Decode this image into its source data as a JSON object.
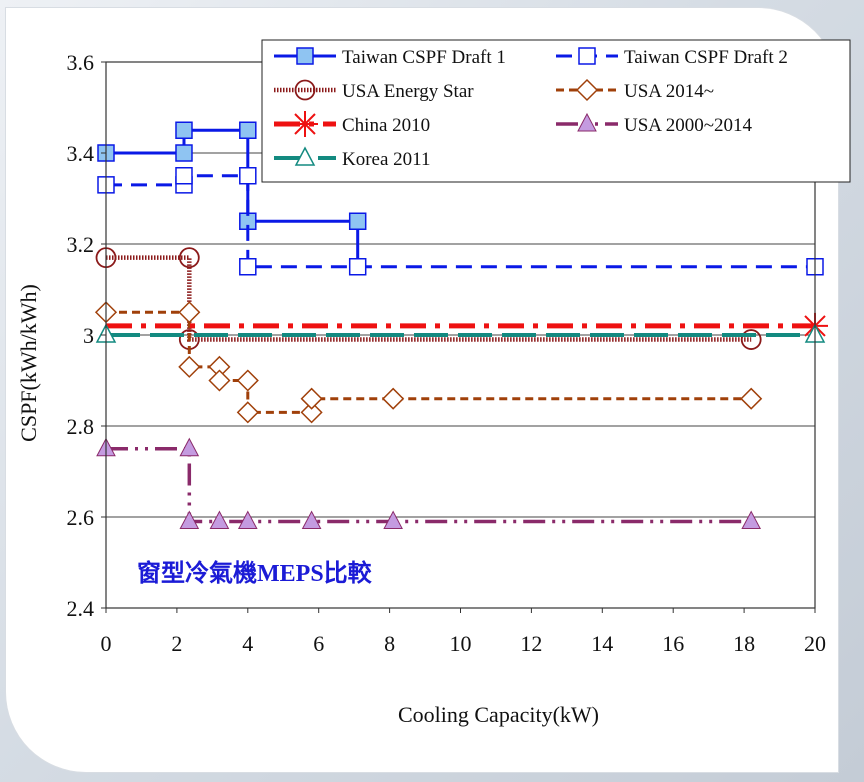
{
  "chart_data": {
    "type": "line",
    "xlabel": "Cooling Capacity(kW)",
    "ylabel": "CSPF(kWh/kWh)",
    "xlim": [
      0,
      20
    ],
    "ylim": [
      2.4,
      3.6
    ],
    "x_ticks": [
      "0",
      "2",
      "4",
      "6",
      "8",
      "10",
      "12",
      "14",
      "16",
      "18",
      "20"
    ],
    "y_ticks": [
      "2.4",
      "2.6",
      "2.8",
      "3",
      "3.2",
      "3.4",
      "3.6"
    ],
    "grid": "horizontal",
    "legend_position": "top-right",
    "annotation": "窗型冷氣機MEPS比較",
    "series": [
      {
        "name": "Taiwan CSPF Draft 1",
        "color": "#0a19e6",
        "dash": "solid",
        "marker": "square-filled",
        "marker_color": "#8fc4f2",
        "points": [
          [
            0,
            3.4
          ],
          [
            2.2,
            3.4
          ],
          [
            2.2,
            3.45
          ],
          [
            3.15,
            3.45
          ],
          [
            3.15,
            3.45
          ],
          [
            4,
            3.45
          ],
          [
            4,
            3.25
          ],
          [
            7.1,
            3.25
          ],
          [
            7.1,
            3.15
          ]
        ],
        "markers": [
          [
            0,
            3.4
          ],
          [
            2.2,
            3.4
          ],
          [
            2.2,
            3.45
          ],
          [
            4,
            3.45
          ],
          [
            4,
            3.25
          ],
          [
            7.1,
            3.25
          ]
        ]
      },
      {
        "name": "Taiwan CSPF Draft 2",
        "color": "#0a19e6",
        "dash": "dash",
        "marker": "square-open",
        "marker_color": "#0a19e6",
        "points": [
          [
            0,
            3.33
          ],
          [
            2.2,
            3.33
          ],
          [
            2.2,
            3.35
          ],
          [
            4,
            3.35
          ],
          [
            4,
            3.15
          ],
          [
            7.1,
            3.15
          ],
          [
            20,
            3.15
          ]
        ],
        "markers": [
          [
            0,
            3.33
          ],
          [
            2.2,
            3.33
          ],
          [
            2.2,
            3.35
          ],
          [
            4,
            3.35
          ],
          [
            4,
            3.15
          ],
          [
            7.1,
            3.15
          ],
          [
            20,
            3.15
          ]
        ]
      },
      {
        "name": "USA Energy Star",
        "color": "#8b1a1a",
        "dash": "dotted-thick",
        "marker": "circle-open",
        "marker_color": "#8b1a1a",
        "points": [
          [
            0,
            3.17
          ],
          [
            2.35,
            3.17
          ],
          [
            2.35,
            2.99
          ],
          [
            18.2,
            2.99
          ]
        ],
        "markers": [
          [
            0,
            3.17
          ],
          [
            2.35,
            3.17
          ],
          [
            2.35,
            2.99
          ],
          [
            18.2,
            2.99
          ]
        ]
      },
      {
        "name": "USA 2014~",
        "color": "#a0400a",
        "dash": "dash-short",
        "marker": "diamond-open",
        "marker_color": "#a0400a",
        "points": [
          [
            0,
            3.05
          ],
          [
            2.35,
            3.05
          ],
          [
            2.35,
            2.93
          ],
          [
            3.2,
            2.93
          ],
          [
            3.2,
            2.9
          ],
          [
            4,
            2.9
          ],
          [
            4,
            2.83
          ],
          [
            5.8,
            2.83
          ],
          [
            5.8,
            2.86
          ],
          [
            18.2,
            2.86
          ]
        ],
        "markers": [
          [
            0,
            3.05
          ],
          [
            2.35,
            3.05
          ],
          [
            2.35,
            2.93
          ],
          [
            3.2,
            2.93
          ],
          [
            3.2,
            2.9
          ],
          [
            4,
            2.9
          ],
          [
            4,
            2.83
          ],
          [
            5.8,
            2.83
          ],
          [
            5.8,
            2.86
          ],
          [
            8.1,
            2.86
          ],
          [
            18.2,
            2.86
          ]
        ]
      },
      {
        "name": "China 2010",
        "color": "#ee1111",
        "dash": "dash-dot-thick",
        "marker": "asterisk",
        "marker_color": "#ee1111",
        "points": [
          [
            0,
            3.02
          ],
          [
            20,
            3.02
          ]
        ],
        "markers": [
          [
            20,
            3.02
          ]
        ]
      },
      {
        "name": "USA 2000~2014",
        "color": "#8a2a6a",
        "dash": "dash-dot-dot",
        "marker": "triangle-filled",
        "marker_color": "#c49be0",
        "points": [
          [
            0,
            2.75
          ],
          [
            2.35,
            2.75
          ],
          [
            2.35,
            2.59
          ],
          [
            18.2,
            2.59
          ]
        ],
        "markers": [
          [
            0,
            2.75
          ],
          [
            2.35,
            2.75
          ],
          [
            2.35,
            2.59
          ],
          [
            3.2,
            2.59
          ],
          [
            4,
            2.59
          ],
          [
            5.8,
            2.59
          ],
          [
            8.1,
            2.59
          ],
          [
            18.2,
            2.59
          ]
        ]
      },
      {
        "name": "Korea 2011",
        "color": "#138a80",
        "dash": "dash-long",
        "marker": "triangle-open",
        "marker_color": "#138a80",
        "points": [
          [
            0,
            3.0
          ],
          [
            20,
            3.0
          ]
        ],
        "markers": [
          [
            0,
            3.0
          ],
          [
            20,
            3.0
          ]
        ]
      }
    ],
    "legend_order": [
      "Taiwan CSPF Draft 1",
      "Taiwan CSPF Draft 2",
      "USA Energy Star",
      "USA 2014~",
      "China 2010",
      "USA 2000~2014",
      "Korea 2011"
    ]
  }
}
